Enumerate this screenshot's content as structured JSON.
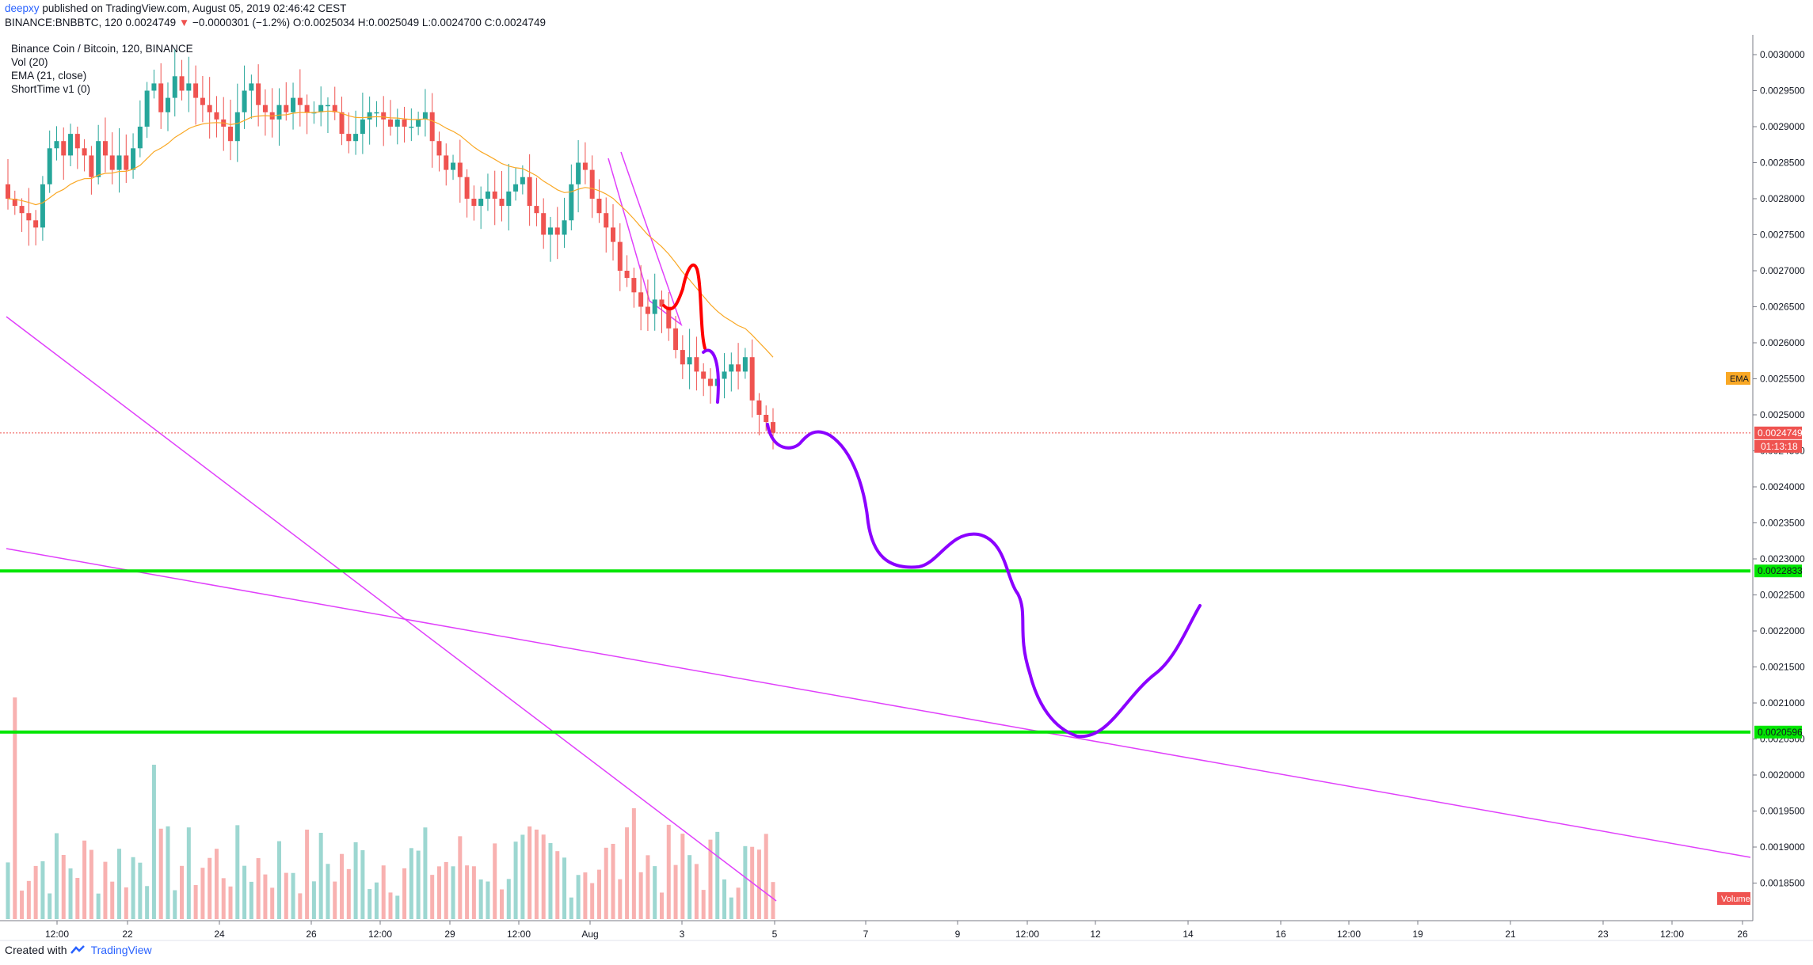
{
  "header": {
    "user": "deepxy",
    "published": "published on TradingView.com, August 05, 2019 02:46:42 CEST"
  },
  "ohlc": {
    "symbol_line": "BINANCE:BNBBTC, 120",
    "last": "0.0024749",
    "change_arrow": "▼",
    "change": "−0.0000301 (−1.2%)",
    "o": "O:0.0025034",
    "h": "H:0.0025049",
    "l": "L:0.0024700",
    "c": "C:0.0024749"
  },
  "legend": {
    "title": "Binance Coin / Bitcoin, 120, BINANCE",
    "vol": "Vol (20)",
    "ema": "EMA (21, close)",
    "shorttime": "ShortTime v1 (0)"
  },
  "footer": {
    "created": "Created with",
    "brand": "TradingView"
  },
  "colors": {
    "up": "#26a69a",
    "down": "#ef5350",
    "ema": "#f9a825",
    "trend": "#e040fb",
    "support": "#00e600",
    "forecast": "#8b00ff",
    "hand_red": "#ff0000"
  },
  "chart_data": {
    "type": "candlestick",
    "price_axis": {
      "min": 0.0018,
      "max": 0.003,
      "ticks": [
        "0.0030000",
        "0.0029500",
        "0.0029000",
        "0.0028500",
        "0.0028000",
        "0.0027500",
        "0.0027000",
        "0.0026500",
        "0.0026000",
        "0.0025500",
        "0.0025000",
        "0.0024500",
        "0.0024000",
        "0.0023500",
        "0.0023000",
        "0.0022500",
        "0.0022000",
        "0.0021500",
        "0.0021000",
        "0.0020500",
        "0.0020000",
        "0.0019500",
        "0.0019000",
        "0.0018500"
      ]
    },
    "time_axis": {
      "ticks": [
        "12:00",
        "22",
        "24",
        "26",
        "12:00",
        "29",
        "12:00",
        "Aug",
        "3",
        "5",
        "7",
        "9",
        "12:00",
        "12",
        "14",
        "16",
        "12:00",
        "19",
        "21",
        "23",
        "12:00",
        "26"
      ]
    },
    "last_price": {
      "value": 0.0024749,
      "label": "0.0024749",
      "countdown": "01:13:18"
    },
    "ema_label": "EMA",
    "volume_label": "Volume",
    "support_levels": [
      {
        "value": 0.0022833,
        "label": "0.0022833"
      },
      {
        "value": 0.0020596,
        "label": "0.0020596"
      }
    ],
    "trendlines": [
      {
        "from": [
          0,
          0.00264
        ],
        "to": [
          670,
          0.00185
        ]
      },
      {
        "from": [
          0,
          0.00232
        ],
        "to": [
          1510,
          0.00189
        ]
      }
    ],
    "closes": [
      0.0028,
      0.00279,
      0.00278,
      0.00277,
      0.00276,
      0.00282,
      0.00287,
      0.00288,
      0.00286,
      0.00289,
      0.00287,
      0.00286,
      0.00283,
      0.00288,
      0.00286,
      0.00284,
      0.00286,
      0.00284,
      0.00287,
      0.0029,
      0.00295,
      0.00296,
      0.00292,
      0.00294,
      0.00297,
      0.00295,
      0.00296,
      0.00294,
      0.00293,
      0.00292,
      0.00291,
      0.0029,
      0.00288,
      0.00292,
      0.00295,
      0.00296,
      0.00293,
      0.00292,
      0.00291,
      0.00293,
      0.00292,
      0.00294,
      0.00293,
      0.00292,
      0.00292,
      0.00293,
      0.00293,
      0.00292,
      0.00289,
      0.00288,
      0.00289,
      0.00291,
      0.00292,
      0.00292,
      0.00291,
      0.0029,
      0.00291,
      0.0029,
      0.0029,
      0.00291,
      0.00292,
      0.00288,
      0.00286,
      0.00284,
      0.00285,
      0.00283,
      0.0028,
      0.00279,
      0.0028,
      0.00281,
      0.0028,
      0.00279,
      0.00281,
      0.00282,
      0.00283,
      0.00279,
      0.00278,
      0.00275,
      0.00276,
      0.00275,
      0.00277,
      0.00282,
      0.00285,
      0.00284,
      0.0028,
      0.00278,
      0.00276,
      0.00274,
      0.0027,
      0.00269,
      0.00267,
      0.00265,
      0.00264,
      0.00266,
      0.00265,
      0.00262,
      0.00259,
      0.00257,
      0.00258,
      0.00256,
      0.00255,
      0.00254,
      0.00255,
      0.00256,
      0.00257,
      0.00256,
      0.00258,
      0.00252,
      0.0025,
      0.00249,
      0.002475
    ]
  }
}
